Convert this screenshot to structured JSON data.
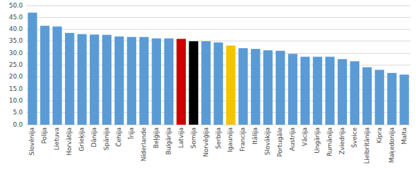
{
  "chart_data": {
    "type": "bar",
    "categories": [
      "Slovēnija",
      "Polija",
      "Lietuva",
      "Horvātija",
      "Grieķija",
      "Dānija",
      "Spānija",
      "Čehija",
      "Īrija",
      "Nīderlande",
      "Beļģija",
      "Bulgārija",
      "Latvija",
      "Somija",
      "Norvēģija",
      "Serbija",
      "Igaunija",
      "Francija",
      "Itālija",
      "Slovākija",
      "Portugāle",
      "Austrija",
      "Vācija",
      "Ungārija",
      "Rumānija",
      "Zviedrija",
      "Šveice",
      "Lielbritānija",
      "Kipra",
      "Maķedonija",
      "Malta"
    ],
    "values": [
      47.0,
      41.5,
      41.2,
      38.5,
      38.0,
      37.8,
      37.7,
      37.0,
      36.8,
      36.8,
      36.2,
      36.2,
      36.0,
      35.0,
      35.0,
      34.5,
      33.2,
      32.1,
      31.8,
      31.2,
      31.0,
      29.7,
      28.5,
      28.5,
      28.5,
      27.5,
      26.6,
      24.1,
      23.0,
      21.7,
      21.0
    ],
    "colors": [
      "#5b9bd5",
      "#5b9bd5",
      "#5b9bd5",
      "#5b9bd5",
      "#5b9bd5",
      "#5b9bd5",
      "#5b9bd5",
      "#5b9bd5",
      "#5b9bd5",
      "#5b9bd5",
      "#5b9bd5",
      "#5b9bd5",
      "#cc0000",
      "#000000",
      "#5b9bd5",
      "#5b9bd5",
      "#f5c400",
      "#5b9bd5",
      "#5b9bd5",
      "#5b9bd5",
      "#5b9bd5",
      "#5b9bd5",
      "#5b9bd5",
      "#5b9bd5",
      "#5b9bd5",
      "#5b9bd5",
      "#5b9bd5",
      "#5b9bd5",
      "#5b9bd5",
      "#5b9bd5",
      "#5b9bd5"
    ],
    "ylim": [
      0,
      50
    ],
    "yticks": [
      {
        "value": 0.0,
        "label": "0.0"
      },
      {
        "value": 5.0,
        "label": "5.0"
      },
      {
        "value": 10.0,
        "label": "10.0"
      },
      {
        "value": 15.0,
        "label": "15.0"
      },
      {
        "value": 20.0,
        "label": "20.0"
      },
      {
        "value": 25.0,
        "label": "25.0"
      },
      {
        "value": 30.0,
        "label": "30.0"
      },
      {
        "value": 35.0,
        "label": "35.0"
      },
      {
        "value": 40.0,
        "label": "40.0"
      },
      {
        "value": 45.0,
        "label": "45.0"
      },
      {
        "value": 50.0,
        "label": "50.0"
      }
    ],
    "grid": true
  }
}
